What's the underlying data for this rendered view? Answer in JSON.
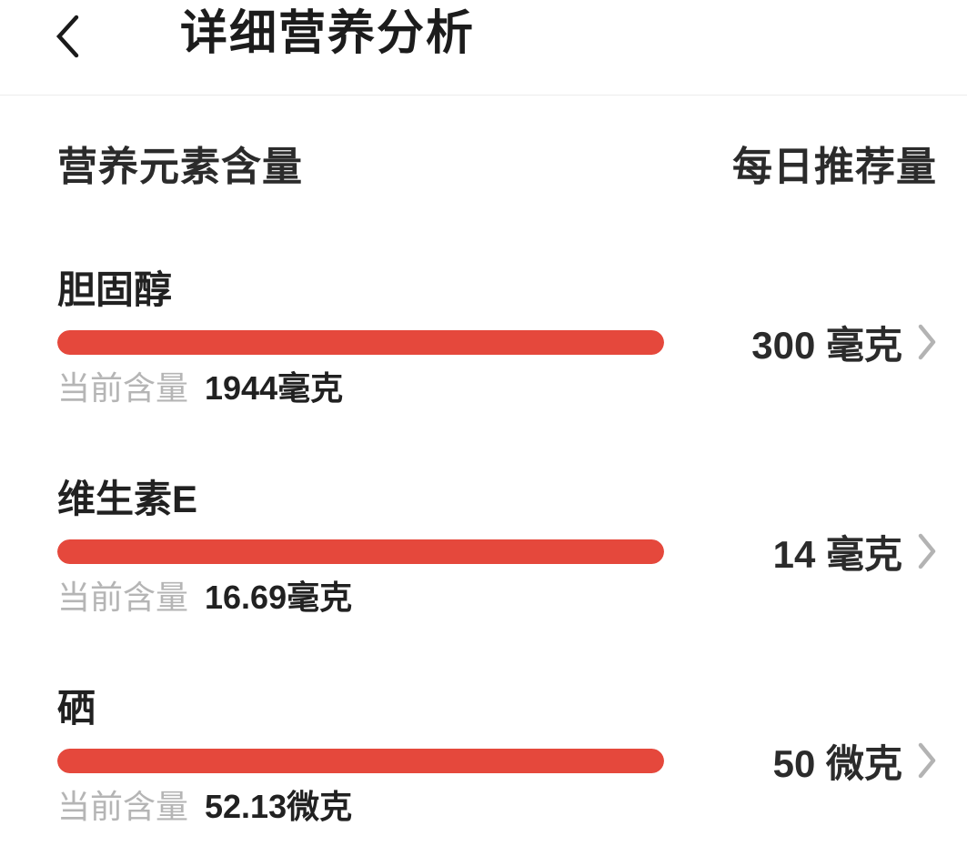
{
  "header": {
    "title": "详细营养分析",
    "back_icon": "chevron-left"
  },
  "columns": {
    "left": "营养元素含量",
    "right": "每日推荐量"
  },
  "rows": [
    {
      "name": "胆固醇",
      "current_label": "当前含量",
      "current_value": "1944毫克",
      "daily_recommended": "300 毫克",
      "progress_percent": 100,
      "row_icon": "chevron-right"
    },
    {
      "name": "维生素E",
      "current_label": "当前含量",
      "current_value": "16.69毫克",
      "daily_recommended": "14 毫克",
      "progress_percent": 100,
      "row_icon": "chevron-right"
    },
    {
      "name": "硒",
      "current_label": "当前含量",
      "current_value": "52.13微克",
      "daily_recommended": "50 微克",
      "progress_percent": 100,
      "row_icon": "chevron-right"
    }
  ],
  "colors": {
    "bar_fill": "#e5483c",
    "text_primary": "#212121",
    "text_secondary": "#b5b5b5",
    "chevron": "#b3b3b3",
    "separator": "#ededed"
  }
}
